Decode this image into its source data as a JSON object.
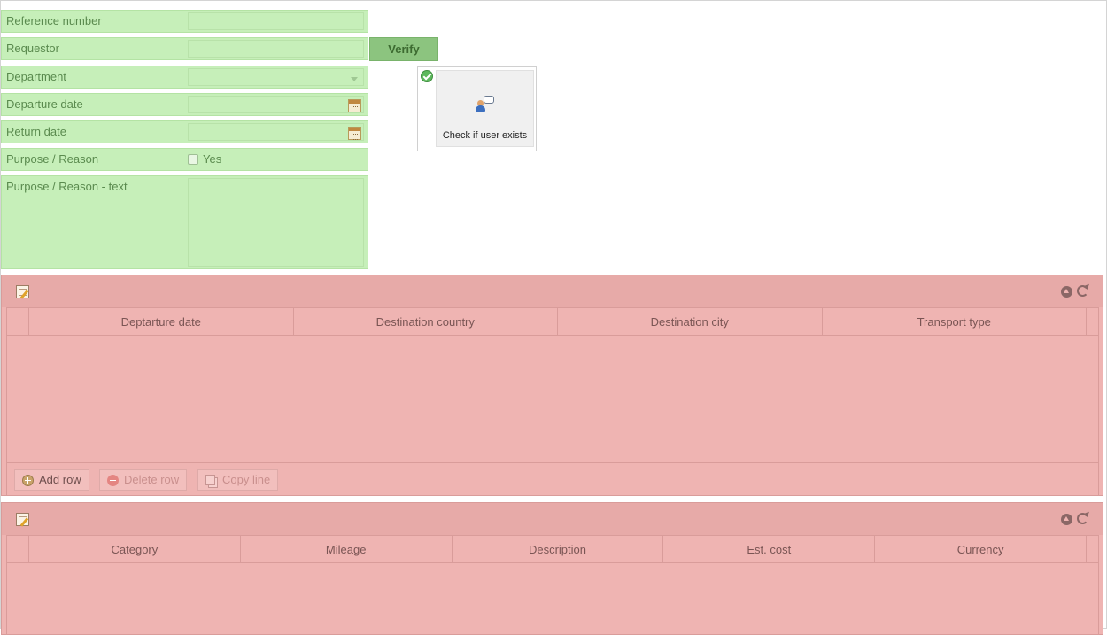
{
  "form": {
    "fields": [
      {
        "label": "Reference number"
      },
      {
        "label": "Requestor"
      },
      {
        "label": "Department"
      },
      {
        "label": "Departure date"
      },
      {
        "label": "Return date"
      },
      {
        "label": "Purpose / Reason",
        "checkbox_label": "Yes"
      },
      {
        "label": "Purpose / Reason - text"
      }
    ],
    "verify_label": "Verify",
    "check_card": {
      "caption": "Check if user exists",
      "status_icon": "check-circle-icon",
      "icon": "user-comment-icon"
    }
  },
  "colors": {
    "form_bg": "#c6efb9",
    "grid_bg": "#efb4b2",
    "verify_bg": "#8cc47f"
  },
  "grids": [
    {
      "columns": [
        "Deptarture date",
        "Destination country",
        "Destination city",
        "Transport type"
      ],
      "buttons": {
        "add": "Add row",
        "delete": "Delete row",
        "copy": "Copy line"
      }
    },
    {
      "columns": [
        "Category",
        "Mileage",
        "Description",
        "Est. cost",
        "Currency"
      ]
    }
  ]
}
